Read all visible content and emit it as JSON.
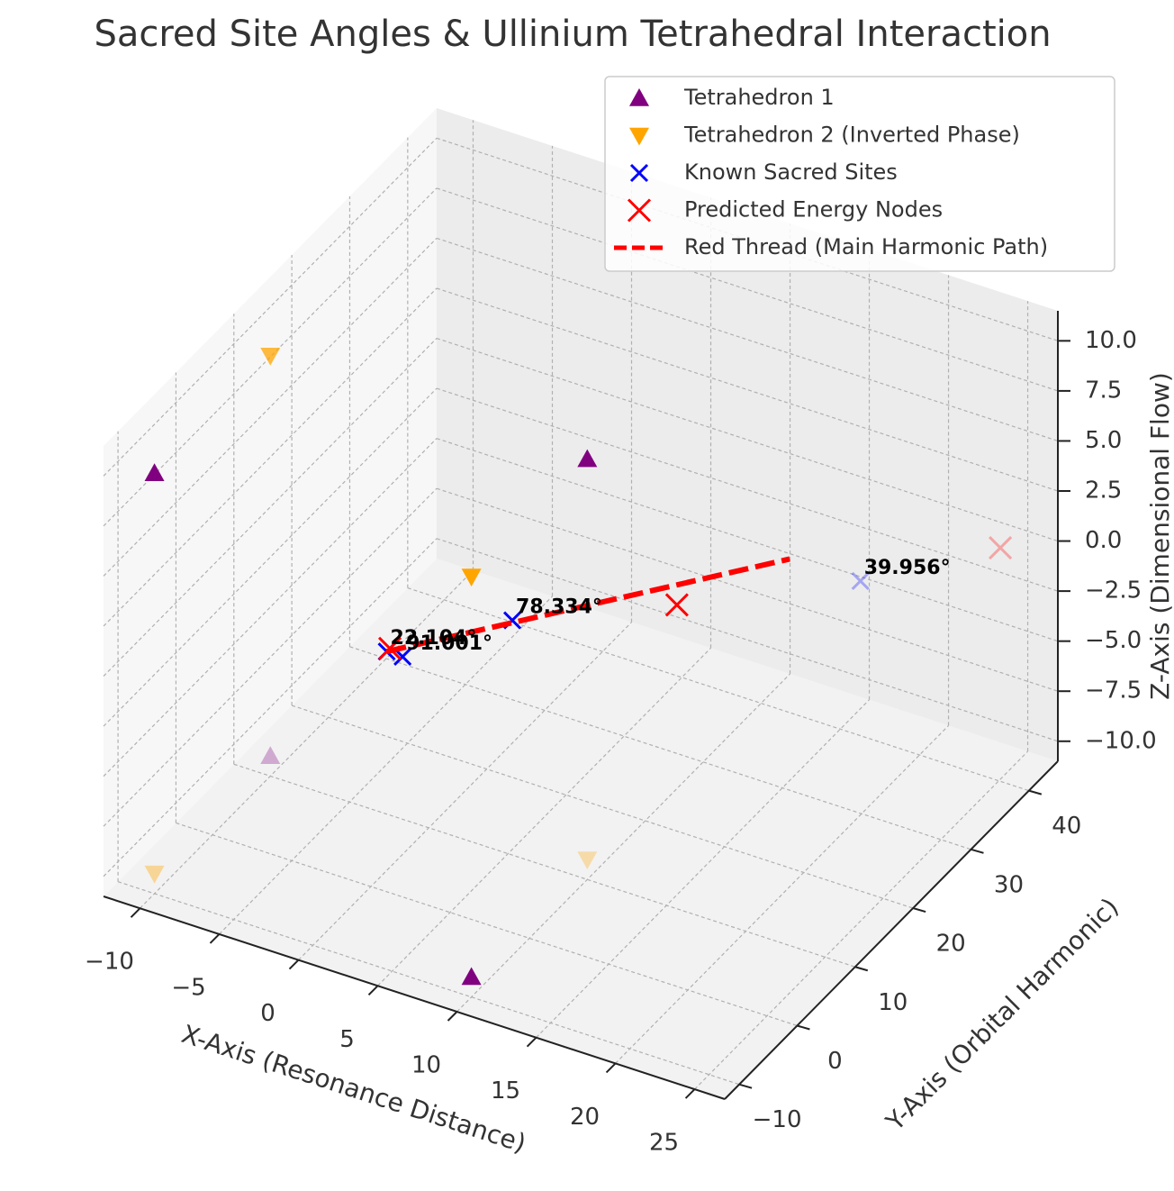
{
  "chart_data": {
    "type": "scatter3d",
    "title": "Sacred Site Angles & Ullinium Tetrahedral Interaction",
    "xlabel": "X-Axis (Resonance Distance)",
    "ylabel": "Y-Axis (Orbital Harmonic)",
    "zlabel": "Z-Axis (Dimensional Flow)",
    "xlim": [
      -12.3,
      26.9
    ],
    "ylim": [
      -12.5,
      45
    ],
    "zlim": [
      -11,
      11.5
    ],
    "xticks": [
      {
        "value": -10,
        "label": "−10"
      },
      {
        "value": -5,
        "label": "−5"
      },
      0,
      5,
      10,
      15,
      20,
      25
    ],
    "yticks": [
      {
        "value": -10,
        "label": "−10"
      },
      0,
      10,
      20,
      30,
      40
    ],
    "zticks": [
      {
        "value": -10,
        "label": "−10.0"
      },
      {
        "value": -7.5,
        "label": "−7.5"
      },
      {
        "value": -5,
        "label": "−5.0"
      },
      {
        "value": -2.5,
        "label": "−2.5"
      },
      {
        "value": 0,
        "label": "0.0"
      },
      2.5,
      {
        "value": 5,
        "label": "5.0"
      },
      7.5,
      {
        "value": 10,
        "label": "10.0"
      }
    ],
    "grid": true,
    "legend": "upper right",
    "series": [
      {
        "name": "Tetrahedron 1",
        "marker": "^",
        "color": "purple",
        "x": [
          -10,
          10,
          10,
          -10
        ],
        "y": [
          -10,
          -10,
          10,
          10
        ],
        "z": [
          10,
          -10,
          10,
          -10
        ]
      },
      {
        "name": "Tetrahedron 2 (Inverted Phase)",
        "marker": "v",
        "color": "orange",
        "x": [
          10,
          -10,
          -10,
          10
        ],
        "y": [
          10,
          10,
          -10,
          -10
        ],
        "z": [
          -10,
          10,
          -10,
          10
        ]
      },
      {
        "name": "Known Sacred Sites",
        "marker": "x",
        "color": "blue",
        "x": [
          1,
          2,
          6,
          17
        ],
        "y": [
          0,
          0,
          8,
          38
        ],
        "z": [
          1,
          1,
          1.5,
          -2.5
        ],
        "labels": [
          "22.104°",
          "91.001°",
          "78.334°",
          "39.956°"
        ]
      },
      {
        "name": "Predicted Energy Nodes",
        "marker": "X",
        "color": "red",
        "x": [
          1.2,
          12,
          24
        ],
        "y": [
          0,
          20,
          43
        ],
        "z": [
          1.2,
          0.3,
          -0.5
        ]
      },
      {
        "name": "Red Thread (Main Harmonic Path)",
        "marker": "--",
        "color": "red",
        "x": [
          1,
          14
        ],
        "y": [
          0,
          34
        ],
        "z": [
          1,
          -1
        ]
      }
    ]
  }
}
